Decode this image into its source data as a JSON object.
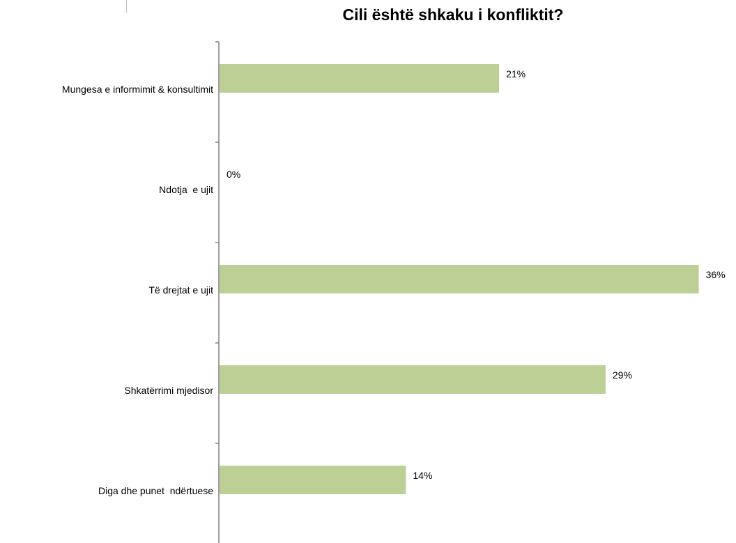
{
  "chart_data": {
    "type": "bar",
    "orientation": "horizontal",
    "title": "Cili është shkaku i konfliktit?",
    "categories": [
      "Mungesa e informimit & konsultimit",
      "Ndotja  e ujit",
      "Të drejtat e ujit",
      "Shkatërrimi mjedisor",
      "Diga dhe punet  ndërtuese"
    ],
    "values": [
      21,
      0,
      36,
      29,
      14
    ],
    "value_labels": [
      "21%",
      "0%",
      "36%",
      "29%",
      "14%"
    ],
    "unit": "%",
    "xlim": [
      0,
      36
    ],
    "bar_color": "#bcd095",
    "axis_color": "#808080",
    "grid": false,
    "legend": "none"
  }
}
